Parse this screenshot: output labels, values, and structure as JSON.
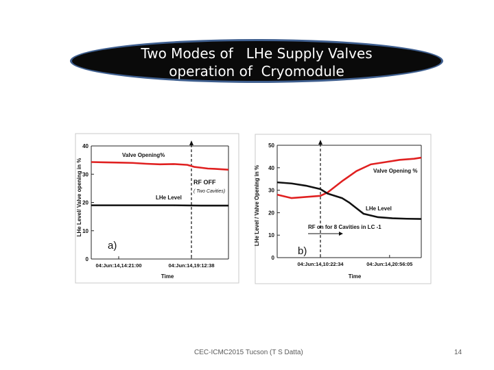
{
  "slide": {
    "title_line1": "Two Modes of   LHe Supply Valves",
    "title_line2": "operation of  Cryomodule",
    "footer": "CEC-ICMC2015 Tucson (T S Datta)",
    "page_number": "14"
  },
  "colors": {
    "title_ellipse_fill": "#0a0a0a",
    "title_ellipse_border": "#3f5f8f",
    "valve_series": "#e02020",
    "lhe_series": "#111111"
  },
  "chart_data": [
    {
      "type": "line",
      "panel_label": "a)",
      "ylabel": "LHe Level/ Valve opening in %",
      "xlabel": "Time",
      "ylim": [
        0,
        40
      ],
      "yticks": [
        0,
        10,
        20,
        30,
        40
      ],
      "xlim": [
        0,
        1
      ],
      "xtick_labels": [
        "04:Jun:14,14:21:00",
        "04:Jun:14,19:12:38"
      ],
      "xtick_positions": [
        0.2,
        0.73
      ],
      "event_line_x": 0.73,
      "series": [
        {
          "name": "Valve Opening%",
          "x": [
            0.0,
            0.1,
            0.2,
            0.3,
            0.4,
            0.5,
            0.6,
            0.7,
            0.75,
            0.8,
            0.85,
            0.9,
            1.0
          ],
          "values": [
            34.3,
            34.2,
            34.1,
            34.0,
            33.7,
            33.5,
            33.6,
            33.3,
            32.6,
            32.3,
            32.0,
            31.9,
            31.6
          ]
        },
        {
          "name": "LHe Level",
          "x": [
            0.0,
            0.2,
            0.4,
            0.6,
            0.8,
            1.0
          ],
          "values": [
            19.0,
            19.0,
            19.0,
            19.0,
            18.9,
            18.9
          ]
        }
      ],
      "annotations": [
        "RF OFF",
        "( Two Cavities)"
      ]
    },
    {
      "type": "line",
      "panel_label": "b)",
      "ylabel": "LHe Level / Valve Opening in %",
      "xlabel": "Time",
      "ylim": [
        0,
        50
      ],
      "yticks": [
        0,
        10,
        20,
        30,
        40,
        50
      ],
      "xlim": [
        0,
        1
      ],
      "xtick_labels": [
        "04:Jun:14,10:22:34",
        "04:Jun:14,20:56:05"
      ],
      "xtick_positions": [
        0.3,
        0.78
      ],
      "event_line_x": 0.3,
      "series": [
        {
          "name": "Valve Opening %",
          "x": [
            0.0,
            0.1,
            0.2,
            0.3,
            0.35,
            0.45,
            0.55,
            0.65,
            0.75,
            0.85,
            0.95,
            1.0
          ],
          "values": [
            28.0,
            26.5,
            27.0,
            27.5,
            29.0,
            34.0,
            38.5,
            41.5,
            42.5,
            43.5,
            44.0,
            44.5
          ]
        },
        {
          "name": "LHe Level",
          "x": [
            0.0,
            0.1,
            0.2,
            0.3,
            0.35,
            0.45,
            0.5,
            0.55,
            0.6,
            0.7,
            0.8,
            0.9,
            1.0
          ],
          "values": [
            33.5,
            33.0,
            32.0,
            30.5,
            28.5,
            26.5,
            24.5,
            22.0,
            19.5,
            18.0,
            17.5,
            17.3,
            17.2
          ]
        }
      ],
      "annotations": [
        "RF on for 8 Cavities in LC -1"
      ]
    }
  ]
}
